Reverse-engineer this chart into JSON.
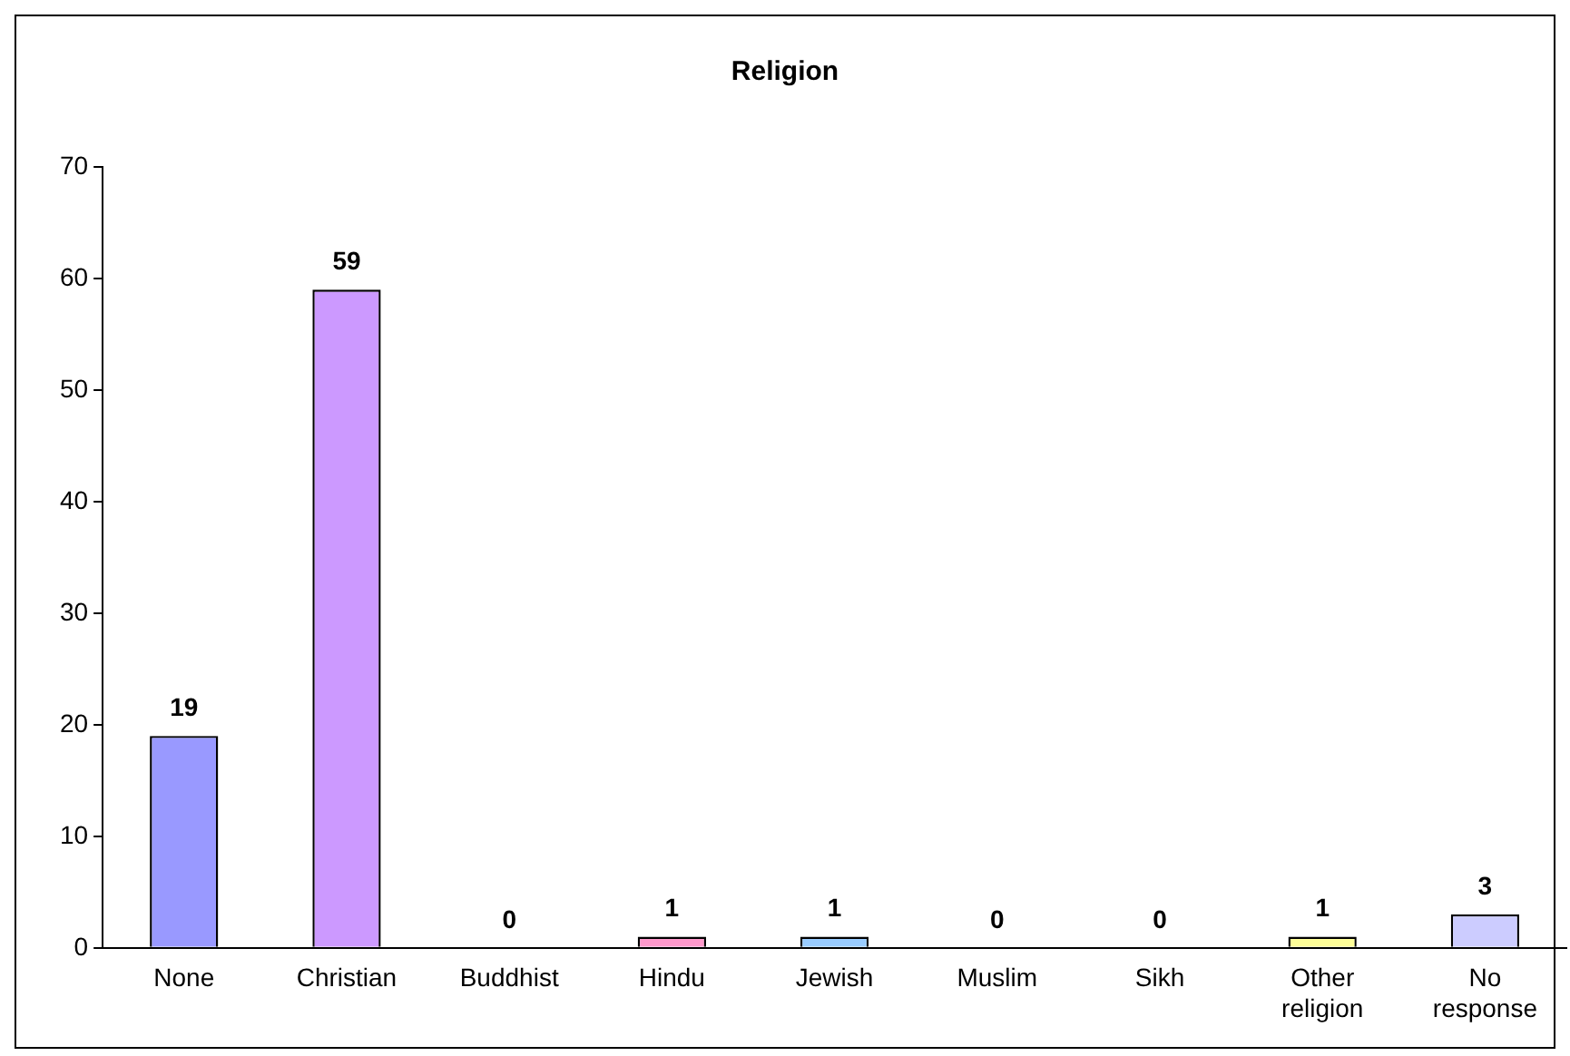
{
  "chart_data": {
    "type": "bar",
    "title": "Religion",
    "categories": [
      "None",
      "Christian",
      "Buddhist",
      "Hindu",
      "Jewish",
      "Muslim",
      "Sikh",
      "Other religion",
      "No response"
    ],
    "values": [
      19,
      59,
      0,
      1,
      1,
      0,
      0,
      1,
      3
    ],
    "colors": [
      "#9999ff",
      "#cc99ff",
      "#ccffcc",
      "#ff99cc",
      "#99ccff",
      "#ffcc99",
      "#99ffcc",
      "#ffff99",
      "#ccccff"
    ],
    "ylim": [
      0,
      70
    ],
    "yticks": [
      0,
      10,
      20,
      30,
      40,
      50,
      60,
      70
    ],
    "grid": false,
    "legend": false,
    "data_labels": true
  }
}
